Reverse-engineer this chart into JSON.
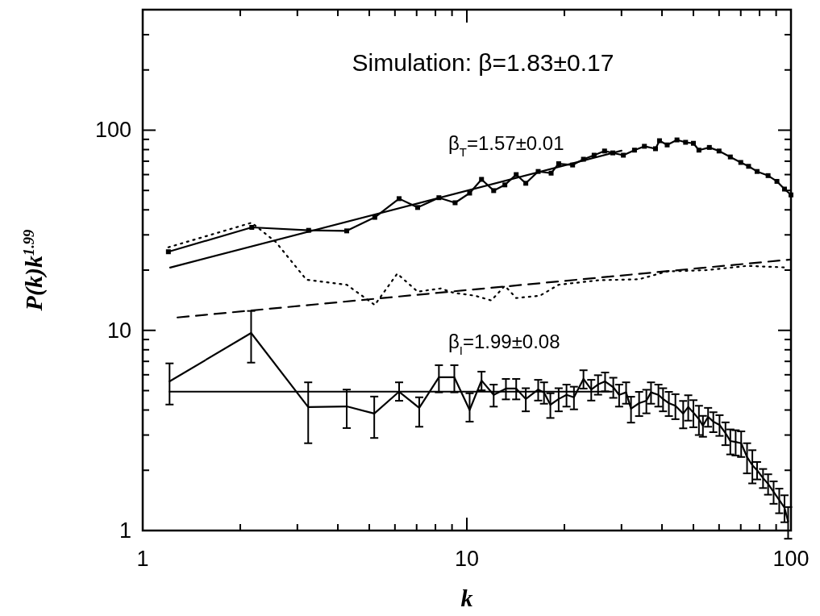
{
  "chart_data": {
    "type": "line",
    "title": "Simulation: β=1.83±0.17",
    "xlabel": "k",
    "ylabel": "P(k)k$^{1.99}$",
    "log": "xy",
    "xlim": [
      1,
      100
    ],
    "ylim": [
      1,
      400
    ],
    "xticks": [
      1,
      {
        "value": 2,
        "label": null
      },
      {
        "value": 3,
        "label": null
      },
      {
        "value": 4,
        "label": null
      },
      {
        "value": 5,
        "label": null
      },
      {
        "value": 6,
        "label": null
      },
      {
        "value": 7,
        "label": null
      },
      {
        "value": 8,
        "label": null
      },
      {
        "value": 9,
        "label": null
      },
      10,
      {
        "value": 20,
        "label": null
      },
      {
        "value": 30,
        "label": null
      },
      {
        "value": 40,
        "label": null
      },
      {
        "value": 50,
        "label": null
      },
      {
        "value": 60,
        "label": null
      },
      {
        "value": 70,
        "label": null
      },
      {
        "value": 80,
        "label": null
      },
      {
        "value": 90,
        "label": null
      },
      100
    ],
    "yticks": [
      1,
      {
        "value": 2,
        "label": null
      },
      {
        "value": 3,
        "label": null
      },
      {
        "value": 4,
        "label": null
      },
      {
        "value": 5,
        "label": null
      },
      {
        "value": 6,
        "label": null
      },
      {
        "value": 7,
        "label": null
      },
      {
        "value": 8,
        "label": null
      },
      {
        "value": 9,
        "label": null
      },
      10,
      {
        "value": 20,
        "label": null
      },
      {
        "value": 30,
        "label": null
      },
      {
        "value": 40,
        "label": null
      },
      {
        "value": 50,
        "label": null
      },
      {
        "value": 60,
        "label": null
      },
      {
        "value": 70,
        "label": null
      },
      {
        "value": 80,
        "label": null
      },
      {
        "value": 90,
        "label": null
      },
      100,
      {
        "value": 200,
        "label": null
      },
      {
        "value": 300,
        "label": null
      },
      {
        "value": 400,
        "label": null
      }
    ],
    "annotations": [
      "β$_{T}$=1.57±0.01",
      "β$_{I}$=1.99±0.08"
    ],
    "series": [
      {
        "color": "#000000",
        "line_style": "solid",
        "marker": "square",
        "x": [
          1.2,
          2.17,
          3.25,
          4.26,
          5.2,
          6.18,
          7.05,
          8.2,
          9.2,
          10.2,
          11.1,
          12.1,
          13.1,
          14.2,
          15.2,
          16.6,
          18.2,
          19.2,
          21.2,
          22.9,
          24.7,
          26.6,
          28.2,
          30.4,
          32.9,
          35.3,
          38.2,
          39.3,
          41.5,
          44.5,
          47.3,
          50,
          52,
          56,
          60,
          65,
          70,
          74,
          78.6,
          85,
          90.5,
          95.5,
          100
        ],
        "values": [
          24.7,
          32.7,
          31.6,
          31.4,
          36.7,
          45.5,
          41.1,
          46,
          43.4,
          48.5,
          56.8,
          49.9,
          53.3,
          60,
          54.3,
          62.2,
          61,
          68,
          67,
          71.6,
          75,
          78.7,
          77,
          75,
          79.5,
          83.1,
          80.8,
          88.6,
          84.4,
          89.4,
          87,
          86,
          79.5,
          82,
          78.7,
          73.5,
          69,
          66,
          62.2,
          59.3,
          55.5,
          50.8,
          47.5
        ]
      },
      {
        "color": "#000000",
        "line_style": "solid",
        "marker": "none",
        "x": [
          1.215,
          30
        ],
        "values": [
          20.6,
          79
        ]
      },
      {
        "color": "#000000",
        "line_style": "dotted",
        "marker": "none",
        "x": [
          1.2,
          2.17,
          2.57,
          3.2,
          4.26,
          5.2,
          6.1,
          7.05,
          8.3,
          9.1,
          10.6,
          11.9,
          13.1,
          14.2,
          16.8,
          19.2,
          25.5,
          34,
          41.5,
          55,
          73.3,
          98
        ],
        "values": [
          26,
          34.5,
          27.7,
          17.9,
          16.9,
          13.4,
          19.2,
          15.6,
          16.2,
          15.4,
          14.9,
          14.1,
          16.7,
          14.5,
          14.9,
          16.9,
          17.8,
          18,
          19.7,
          20,
          21,
          20.6
        ]
      },
      {
        "color": "#000000",
        "line_style": "dashed",
        "marker": "none",
        "x": [
          1.28,
          100
        ],
        "values": [
          11.6,
          22.6
        ]
      },
      {
        "color": "#000000",
        "line_style": "solid",
        "marker": "none",
        "x": [
          1.21,
          2.16,
          3.24,
          4.26,
          5.18,
          6.18,
          7.13,
          8.2,
          9.15,
          10.2,
          11.1,
          12.1,
          13.2,
          14.2,
          15.2,
          16.6,
          17.3,
          18.1,
          19.2,
          20.3,
          21.4,
          22.9,
          24.2,
          25.4,
          26.7,
          28.3,
          29.5,
          31,
          32.1,
          34,
          35.8,
          37,
          39,
          40.3,
          42,
          44,
          46.5,
          48.2,
          50,
          52,
          53.5,
          55.5,
          57.6,
          60.2,
          62.8,
          65,
          67.5,
          70.2,
          73.2,
          76,
          78.6,
          82,
          85,
          88.4,
          92,
          95.5,
          98
        ],
        "values": [
          5.56,
          9.7,
          4.14,
          4.17,
          3.84,
          4.94,
          4.1,
          5.83,
          5.83,
          4.0,
          5.62,
          4.76,
          5.12,
          5.12,
          4.54,
          5.06,
          4.9,
          4.25,
          4.54,
          4.76,
          4.63,
          5.72,
          5.06,
          5.37,
          5.56,
          5.2,
          4.76,
          4.9,
          4.06,
          4.33,
          4.45,
          4.9,
          4.76,
          4.54,
          4.33,
          4.2,
          3.84,
          4.14,
          3.88,
          3.6,
          3.34,
          3.7,
          3.5,
          3.37,
          3.07,
          2.8,
          2.77,
          2.73,
          2.33,
          2.12,
          2.0,
          1.83,
          1.71,
          1.56,
          1.42,
          1.3,
          1.11
        ],
        "errors": [
          [
            4.26,
            6.84
          ],
          [
            6.9,
            12.5
          ],
          [
            2.73,
            5.5
          ],
          [
            3.25,
            5.06
          ],
          [
            2.9,
            4.67
          ],
          [
            4.45,
            5.5
          ],
          [
            3.3,
            4.63
          ],
          [
            4.9,
            6.7
          ],
          [
            4.9,
            6.7
          ],
          [
            3.5,
            4.85
          ],
          0.6,
          0.6,
          0.6,
          0.6,
          0.6,
          0.6,
          0.6,
          0.6,
          0.6,
          0.6,
          0.6,
          0.6,
          0.6,
          0.6,
          0.6,
          0.6,
          0.6,
          0.6,
          0.6,
          0.6,
          0.6,
          0.6,
          0.6,
          0.6,
          0.6,
          0.6,
          0.6,
          0.6,
          0.6,
          0.6,
          0.4,
          0.4,
          0.4,
          0.4,
          0.4,
          0.4,
          0.4,
          0.4,
          0.4,
          0.4,
          0.2,
          0.2,
          0.2,
          0.2,
          0.2,
          0.2,
          0.2
        ]
      },
      {
        "color": "#000000",
        "line_style": "solid",
        "marker": "none",
        "x": [
          1.21,
          28
        ],
        "values": [
          4.94,
          4.94
        ]
      }
    ]
  }
}
